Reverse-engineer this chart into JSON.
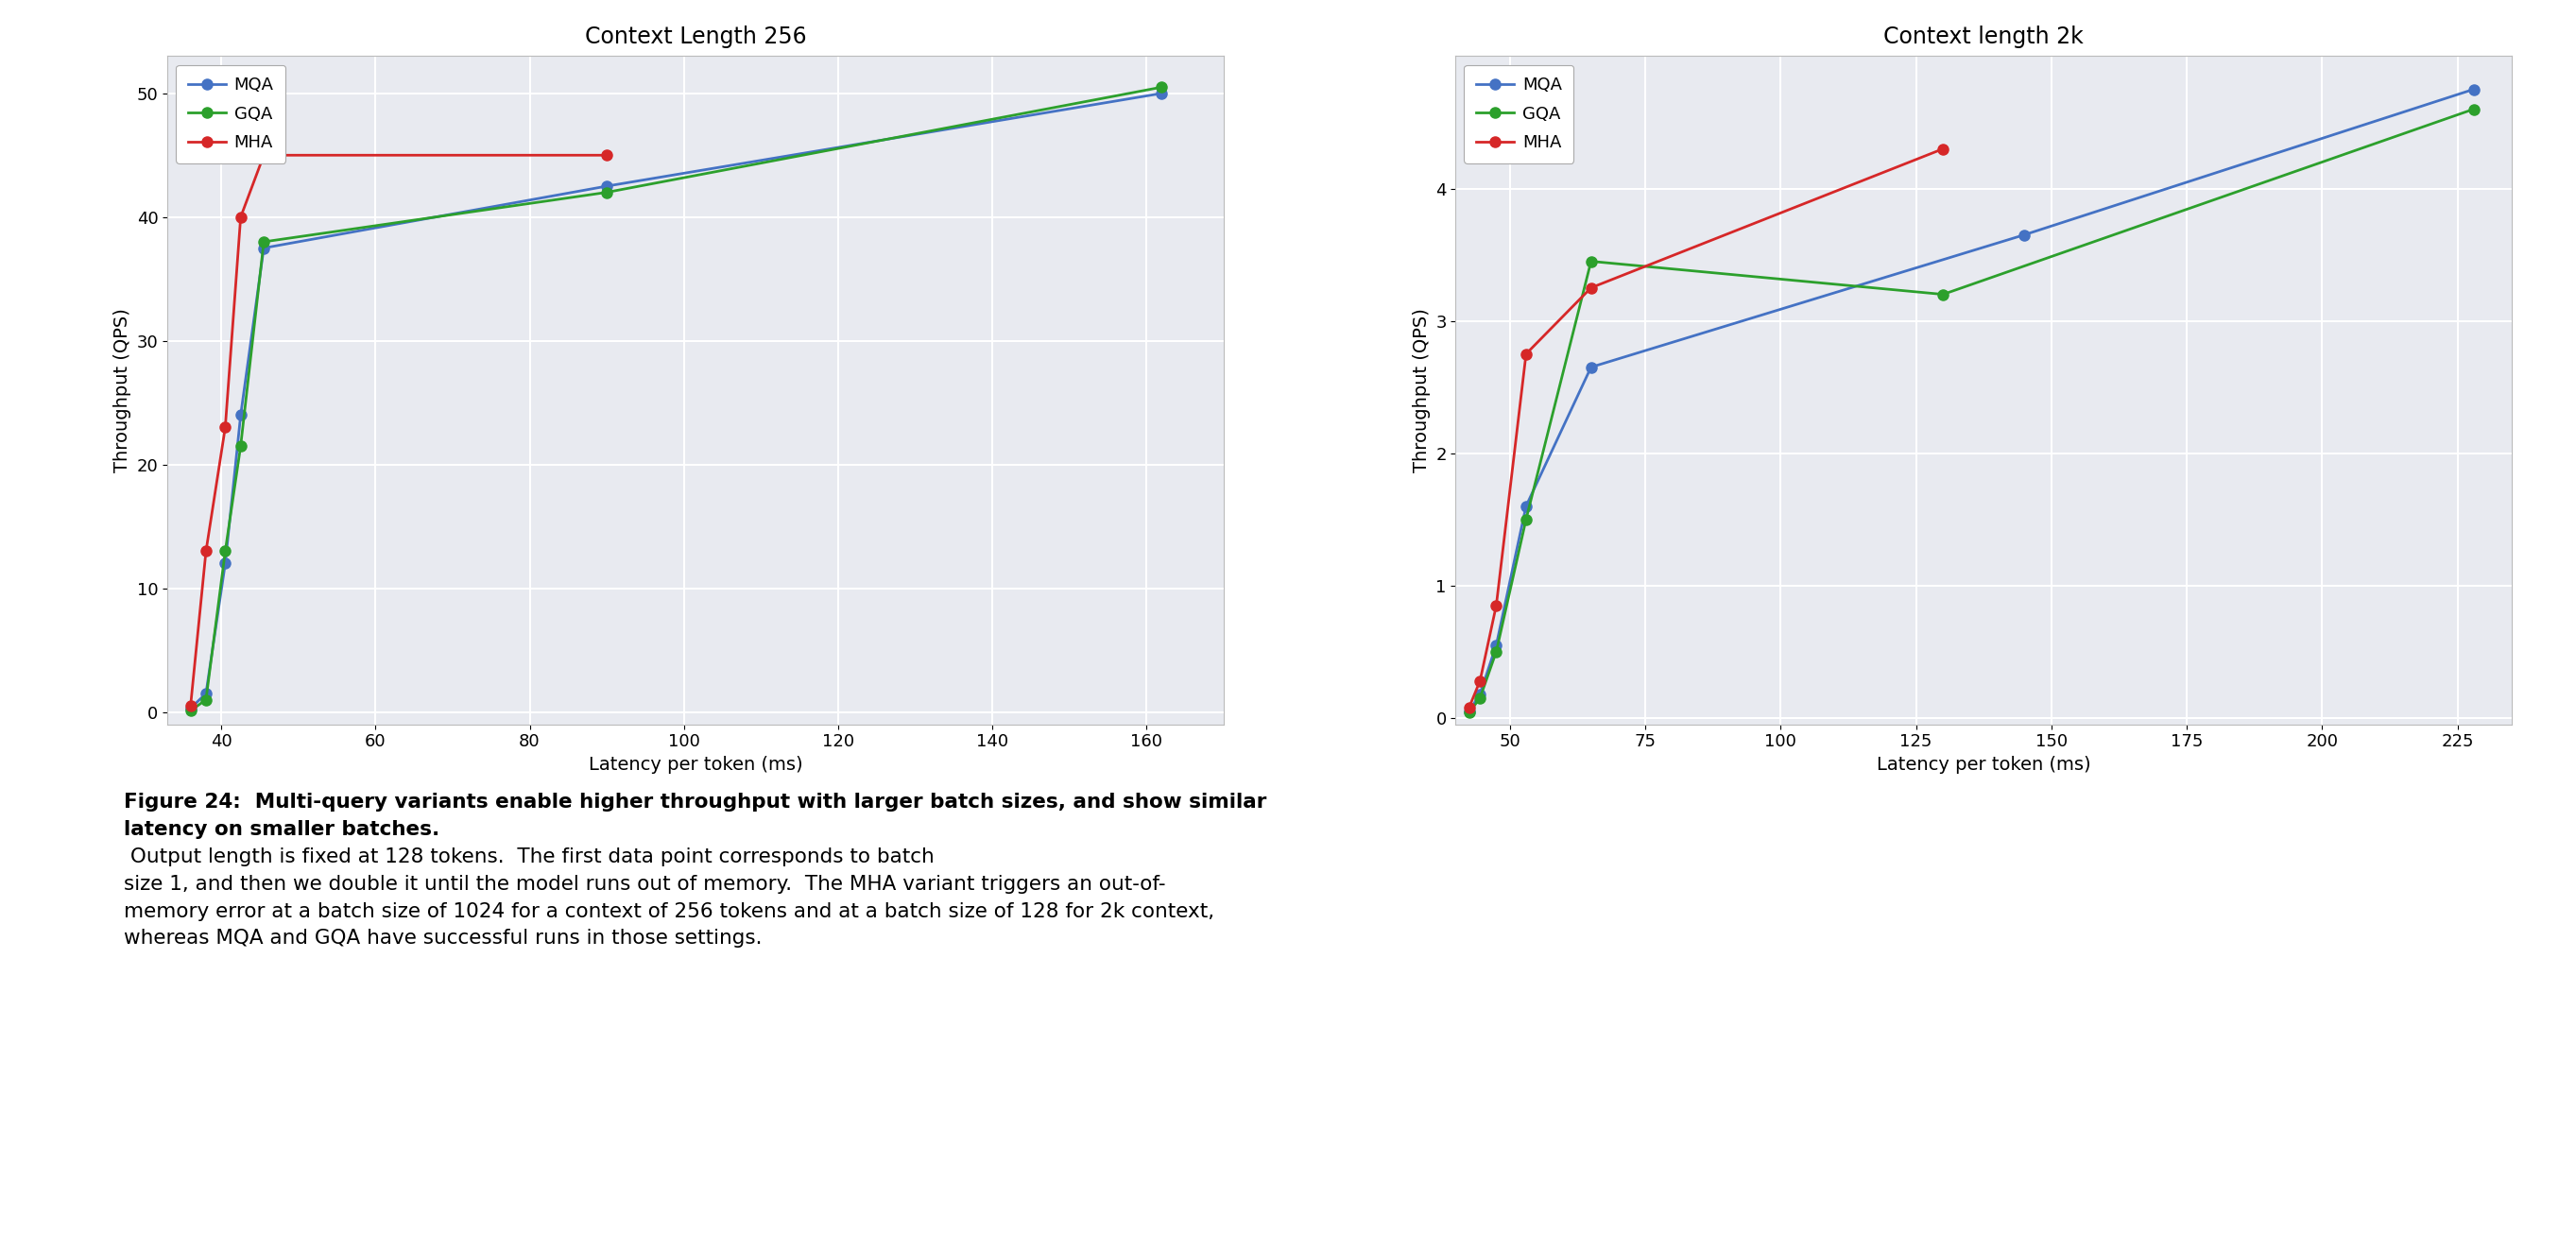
{
  "plot1": {
    "title": "Context Length 256",
    "xlabel": "Latency per token (ms)",
    "ylabel": "Throughput (QPS)",
    "xlim": [
      33,
      170
    ],
    "ylim": [
      -1,
      53
    ],
    "xticks": [
      40,
      60,
      80,
      100,
      120,
      140,
      160
    ],
    "yticks": [
      0,
      10,
      20,
      30,
      40,
      50
    ],
    "MQA_x": [
      36.0,
      38.0,
      40.5,
      42.5,
      45.5,
      90.0,
      162.0
    ],
    "MQA_y": [
      0.3,
      1.5,
      12.0,
      24.0,
      37.5,
      42.5,
      50.0
    ],
    "GQA_x": [
      36.0,
      38.0,
      40.5,
      42.5,
      45.5,
      90.0,
      162.0
    ],
    "GQA_y": [
      0.1,
      1.0,
      13.0,
      21.5,
      38.0,
      42.0,
      50.5
    ],
    "MHA_x": [
      36.0,
      38.0,
      40.5,
      42.5,
      45.5,
      90.0
    ],
    "MHA_y": [
      0.5,
      13.0,
      23.0,
      40.0,
      45.0,
      45.0
    ],
    "MQA_color": "#4472c4",
    "GQA_color": "#2ca02c",
    "MHA_color": "#d62728"
  },
  "plot2": {
    "title": "Context length 2k",
    "xlabel": "Latency per token (ms)",
    "ylabel": "Throughput (QPS)",
    "xlim": [
      40,
      235
    ],
    "ylim": [
      -0.05,
      5.0
    ],
    "xticks": [
      50,
      75,
      100,
      125,
      150,
      175,
      200,
      225
    ],
    "yticks": [
      0,
      1,
      2,
      3,
      4
    ],
    "MQA_x": [
      42.5,
      44.5,
      47.5,
      53.0,
      65.0,
      145.0,
      228.0
    ],
    "MQA_y": [
      0.05,
      0.18,
      0.55,
      1.6,
      2.65,
      3.65,
      4.75
    ],
    "GQA_x": [
      42.5,
      44.5,
      47.5,
      53.0,
      65.0,
      130.0,
      228.0
    ],
    "GQA_y": [
      0.04,
      0.15,
      0.5,
      1.5,
      3.45,
      3.2,
      4.6
    ],
    "MHA_x": [
      42.5,
      44.5,
      47.5,
      53.0,
      65.0,
      130.0
    ],
    "MHA_y": [
      0.08,
      0.28,
      0.85,
      2.75,
      3.25,
      4.3
    ],
    "MQA_color": "#4472c4",
    "GQA_color": "#2ca02c",
    "MHA_color": "#d62728"
  },
  "background_color": "#e8eaf0",
  "marker_size": 8,
  "line_width": 2.0,
  "caption_bold": "Figure 24:  Multi-query variants enable higher throughput with larger batch sizes, and show similar\nlatency on smaller batches.",
  "caption_normal": " Output length is fixed at 128 tokens.  The first data point corresponds to batch\nsize 1, and then we double it until the model runs out of memory.  The MHA variant triggers an out-of-\nmemory error at a batch size of 1024 for a context of 256 tokens and at a batch size of 128 for 2k context,\nwhereas MQA and GQA have successful runs in those settings."
}
